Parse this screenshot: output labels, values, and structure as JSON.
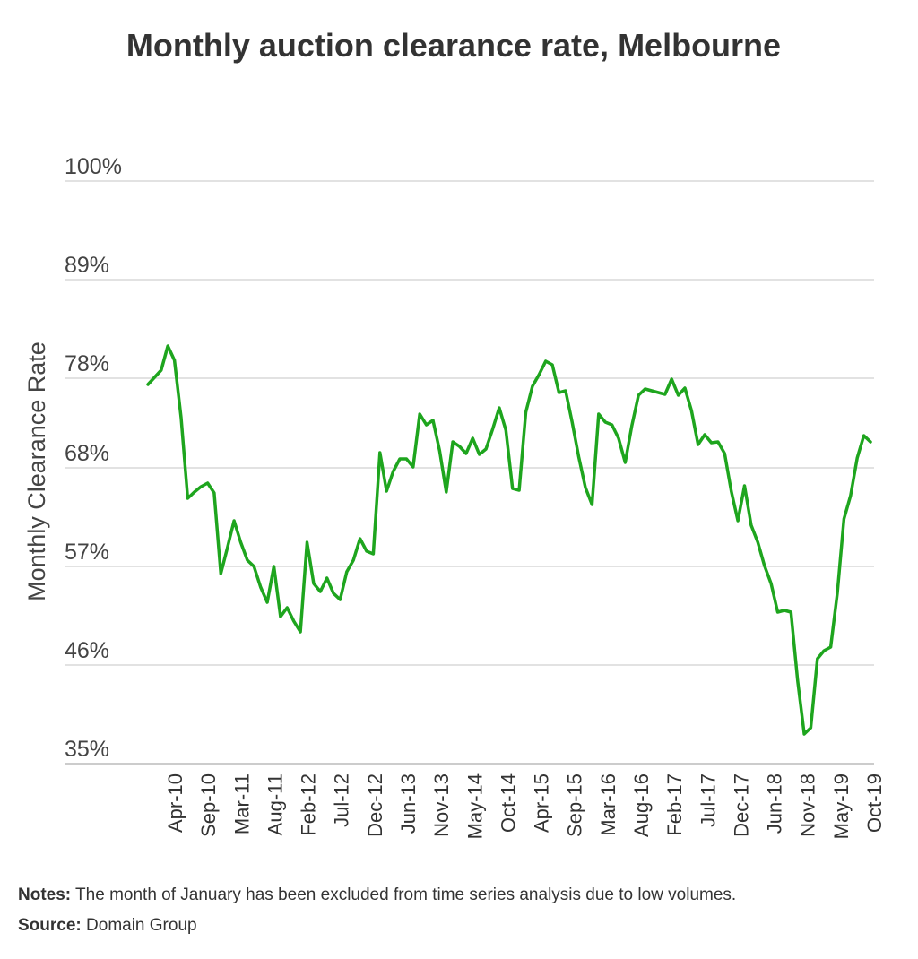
{
  "chart_data": {
    "type": "line",
    "title": "Monthly auction clearance rate, Melbourne",
    "ylabel": "Monthly Clearance Rate",
    "xlabel": "",
    "ylim": [
      35,
      100
    ],
    "y_ticks": [
      "35%",
      "46%",
      "57%",
      "68%",
      "78%",
      "89%",
      "100%"
    ],
    "y_tick_values": [
      35,
      46,
      57,
      68,
      78,
      89,
      100
    ],
    "x_tick_labels": [
      "Apr-10",
      "Sep-10",
      "Mar-11",
      "Aug-11",
      "Feb-12",
      "Jul-12",
      "Dec-12",
      "Jun-13",
      "Nov-13",
      "May-14",
      "Oct-14",
      "Apr-15",
      "Sep-15",
      "Mar-16",
      "Aug-16",
      "Feb-17",
      "Jul-17",
      "Dec-17",
      "Jun-18",
      "Nov-18",
      "May-19",
      "Oct-19"
    ],
    "grid": true,
    "line_color": "#1ea51e",
    "series": [
      {
        "values": [
          77.3,
          78.1,
          78.9,
          81.6,
          80.0,
          73.6,
          64.6,
          65.3,
          65.9,
          66.3,
          65.2,
          56.2,
          59.1,
          62.1,
          59.7,
          57.7,
          57.0,
          54.7,
          53.0,
          57.0,
          51.4,
          52.4,
          50.9,
          49.7,
          59.7,
          55.1,
          54.2,
          55.7,
          54.0,
          53.3,
          56.4,
          57.7,
          60.1,
          58.7,
          58.4,
          69.7,
          65.4,
          67.6,
          69.0,
          69.0,
          68.1,
          74.0,
          72.8,
          73.3,
          69.9,
          65.3,
          70.9,
          70.4,
          69.6,
          71.3,
          69.5,
          70.1,
          72.3,
          74.7,
          72.2,
          65.7,
          65.5,
          74.2,
          77.1,
          78.4,
          79.9,
          79.5,
          76.4,
          76.6,
          73.1,
          69.2,
          65.8,
          63.9,
          74.0,
          73.1,
          72.8,
          71.3,
          68.6,
          72.7,
          76.1,
          76.8,
          76.6,
          76.4,
          76.2,
          77.9,
          76.1,
          76.9,
          74.4,
          70.6,
          71.7,
          70.8,
          70.9,
          69.6,
          65.4,
          62.1,
          66.0,
          61.6,
          59.7,
          57.1,
          55.1,
          51.9,
          52.1,
          51.9,
          44.3,
          38.3,
          39.0,
          46.7,
          47.6,
          48.0,
          54.0,
          62.3,
          64.9,
          69.1,
          71.6,
          70.9
        ]
      }
    ]
  },
  "notes": {
    "label": "Notes:",
    "text": " The month of January has been excluded from time series analysis due to low volumes."
  },
  "source": {
    "label": "Source:",
    "text": " Domain Group"
  }
}
